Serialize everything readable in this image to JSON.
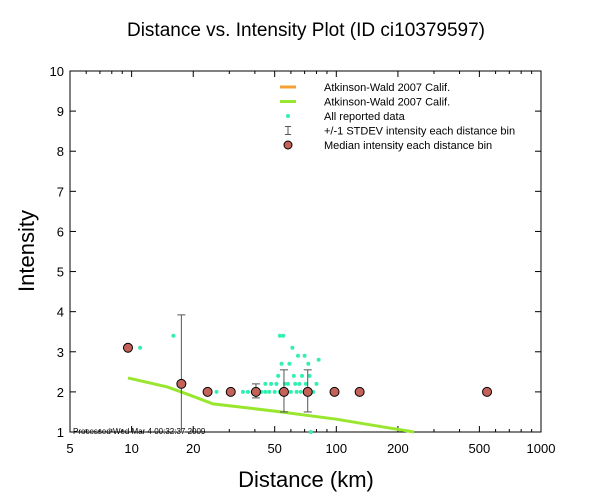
{
  "chart_data": {
    "type": "scatter",
    "title": "Distance vs. Intensity Plot (ID ci10379597)",
    "xlabel": "Distance (km)",
    "ylabel": "Intensity",
    "x_scale": "log",
    "xlim": [
      5,
      1000
    ],
    "ylim": [
      1,
      10
    ],
    "x_ticks": [
      5,
      10,
      20,
      50,
      100,
      200,
      500,
      1000
    ],
    "y_ticks": [
      1,
      2,
      3,
      4,
      5,
      6,
      7,
      8,
      9,
      10
    ],
    "legend_position": "top-right",
    "footnote": "Processed Wed Mar  4 00:32:37 2009",
    "legend": [
      {
        "label": "Atkinson-Wald 2007 Calif.",
        "kind": "line",
        "color": "#f5a033"
      },
      {
        "label": "Atkinson-Wald 2007 Calif.",
        "kind": "line",
        "color": "#99e62e"
      },
      {
        "label": "All reported data",
        "kind": "dot",
        "color": "#33f0b0"
      },
      {
        "label": "+/-1 STDEV intensity each distance bin",
        "kind": "errorbar",
        "color": "#555555"
      },
      {
        "label": "Median intensity each distance bin",
        "kind": "circle",
        "color": "#c4625a"
      }
    ],
    "series": [
      {
        "name": "Atkinson-Wald 2007 Calif.",
        "kind": "line",
        "color": "#99e62e",
        "points": [
          [
            9.6,
            2.35
          ],
          [
            15,
            2.12
          ],
          [
            19,
            1.93
          ],
          [
            25,
            1.7
          ],
          [
            50,
            1.52
          ],
          [
            100,
            1.32
          ],
          [
            150,
            1.17
          ],
          [
            240,
            1.0
          ]
        ]
      },
      {
        "name": "All reported data",
        "kind": "points",
        "color": "#33f0b0",
        "points": [
          [
            11,
            3.1
          ],
          [
            16,
            3.4
          ],
          [
            17.5,
            2.2
          ],
          [
            26,
            2.0
          ],
          [
            35,
            2.0
          ],
          [
            37,
            2.0
          ],
          [
            39,
            2.0
          ],
          [
            41,
            2.0
          ],
          [
            43,
            2.0
          ],
          [
            45,
            2.0
          ],
          [
            45,
            2.2
          ],
          [
            47,
            2.0
          ],
          [
            48,
            2.2
          ],
          [
            50,
            2.0
          ],
          [
            51,
            2.2
          ],
          [
            52,
            2.4
          ],
          [
            53,
            2.0
          ],
          [
            53,
            3.4
          ],
          [
            54,
            2.7
          ],
          [
            55,
            3.4
          ],
          [
            56,
            2.2
          ],
          [
            57,
            2.0
          ],
          [
            58,
            2.2
          ],
          [
            59,
            2.7
          ],
          [
            60,
            2.0
          ],
          [
            61,
            3.1
          ],
          [
            62,
            2.4
          ],
          [
            63,
            2.2
          ],
          [
            64,
            2.0
          ],
          [
            65,
            2.9
          ],
          [
            66,
            2.2
          ],
          [
            67,
            2.0
          ],
          [
            68,
            2.4
          ],
          [
            70,
            2.9
          ],
          [
            71,
            2.2
          ],
          [
            72,
            2.0
          ],
          [
            73,
            2.7
          ],
          [
            74,
            2.4
          ],
          [
            75,
            1.0
          ],
          [
            77,
            2.0
          ],
          [
            80,
            2.2
          ],
          [
            82,
            2.8
          ],
          [
            530,
            2.0
          ]
        ]
      },
      {
        "name": "+/-1 STDEV intensity each distance bin",
        "kind": "errorbar",
        "color": "#555555",
        "points": [
          [
            17.5,
            1.0,
            3.92
          ],
          [
            40.5,
            1.85,
            2.2
          ],
          [
            55.5,
            1.5,
            2.55
          ],
          [
            72.5,
            1.5,
            2.55
          ]
        ]
      },
      {
        "name": "Median intensity each distance bin",
        "kind": "circles",
        "color": "#c4625a",
        "points": [
          [
            9.6,
            3.1
          ],
          [
            17.5,
            2.2
          ],
          [
            23.5,
            2.0
          ],
          [
            30.5,
            2.0
          ],
          [
            40.5,
            2.0
          ],
          [
            55.5,
            2.0
          ],
          [
            72.5,
            2.0
          ],
          [
            98,
            2.0
          ],
          [
            130,
            2.0
          ],
          [
            545,
            2.0
          ]
        ]
      }
    ]
  }
}
